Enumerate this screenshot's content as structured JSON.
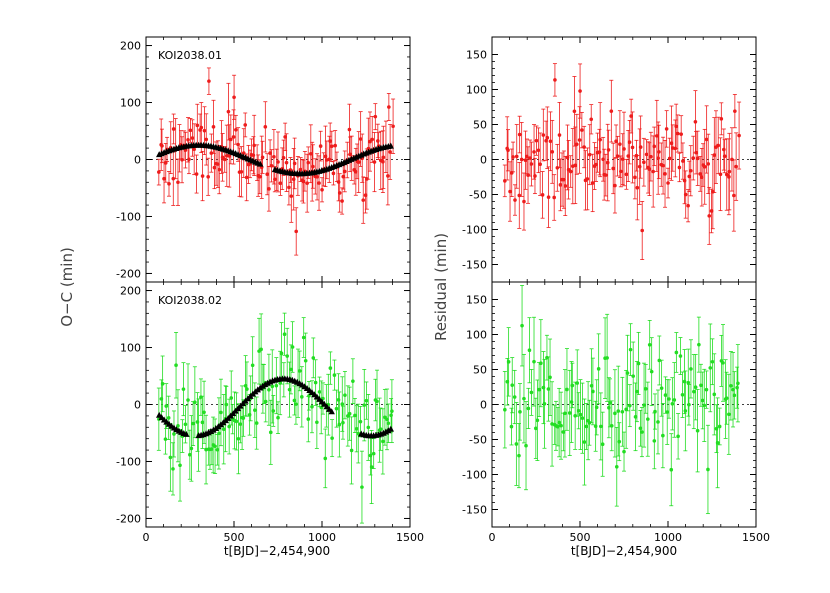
{
  "figure": {
    "ylabel_left": "O−C  (min)",
    "ylabel_right": "Residual  (min)",
    "xlabel": "t[BJD]−2,454,900"
  },
  "colors": {
    "planet1": "#ee1c1c",
    "planet2": "#22dd22",
    "model": "#000000"
  },
  "chart_data": [
    {
      "type": "scatter",
      "panel": "top-left",
      "label": "KOI2038.01",
      "color": "#ee1c1c",
      "xlim": [
        0,
        1500
      ],
      "ylim": [
        -215,
        215
      ],
      "yticks": [
        -200,
        -100,
        0,
        100,
        200
      ],
      "xticks": [
        0,
        500,
        1000,
        1500
      ],
      "show_xtick_labels": false,
      "seed": 11,
      "n_points": 140,
      "x_range": [
        75,
        1400
      ],
      "signal": {
        "amp": 25,
        "period": 1155,
        "phase": 10,
        "offset": 0
      },
      "model": {
        "step": 14,
        "gap": [
          650,
          720
        ],
        "shape": "sine",
        "amp": 25,
        "period": 1155,
        "phase": 10
      },
      "scatter_sd": 32,
      "err_range": [
        20,
        55
      ]
    },
    {
      "type": "scatter",
      "panel": "top-right",
      "label": "",
      "color": "#ee1c1c",
      "xlim": [
        0,
        1500
      ],
      "ylim": [
        -175,
        175
      ],
      "yticks": [
        -150,
        -100,
        -50,
        0,
        50,
        100,
        150
      ],
      "xticks": [
        0,
        500,
        1000,
        1500
      ],
      "show_xtick_labels": false,
      "seed": 11,
      "n_points": 140,
      "x_range": [
        75,
        1400
      ],
      "signal": {
        "amp": 0,
        "period": 1000,
        "phase": 0,
        "offset": 0
      },
      "model": null,
      "scatter_sd": 32,
      "err_range": [
        20,
        55
      ]
    },
    {
      "type": "scatter",
      "panel": "bottom-left",
      "label": "KOI2038.02",
      "color": "#22dd22",
      "xlim": [
        0,
        1500
      ],
      "ylim": [
        -215,
        215
      ],
      "yticks": [
        -200,
        -100,
        0,
        100,
        200
      ],
      "xticks": [
        0,
        500,
        1000,
        1500
      ],
      "show_xtick_labels": true,
      "seed": 29,
      "n_points": 125,
      "x_range": [
        75,
        1400
      ],
      "signal": {
        "amp": 50,
        "period": 1000,
        "phase": 530,
        "offset": -5
      },
      "model": {
        "step": 14,
        "gap": [
          240,
          290
        ],
        "shape": "sine",
        "amp": 50,
        "period": 1000,
        "phase": 530,
        "offset": -5,
        "gap2": [
          1060,
          1210
        ]
      },
      "scatter_sd": 38,
      "err_range": [
        25,
        65
      ]
    },
    {
      "type": "scatter",
      "panel": "bottom-right",
      "label": "",
      "color": "#22dd22",
      "xlim": [
        0,
        1500
      ],
      "ylim": [
        -175,
        175
      ],
      "yticks": [
        -150,
        -100,
        -50,
        0,
        50,
        100,
        150
      ],
      "xticks": [
        0,
        500,
        1000,
        1500
      ],
      "show_xtick_labels": true,
      "seed": 29,
      "n_points": 125,
      "x_range": [
        75,
        1400
      ],
      "signal": {
        "amp": 0,
        "period": 1000,
        "phase": 0,
        "offset": 0
      },
      "model": null,
      "scatter_sd": 38,
      "err_range": [
        25,
        65
      ]
    }
  ]
}
